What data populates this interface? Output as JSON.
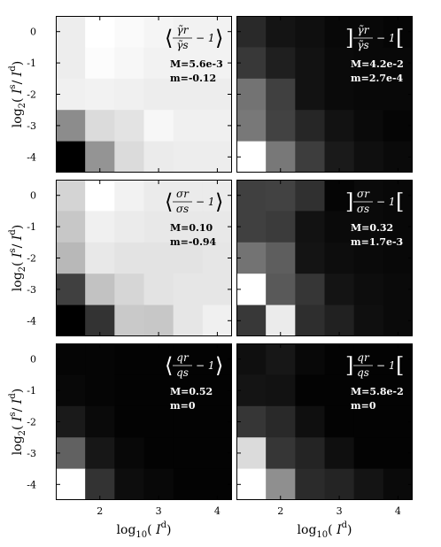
{
  "axes": {
    "xlabel_base": "log",
    "xlabel_sub": "10",
    "xlabel_arg": "I",
    "xlabel_sup": "d",
    "ylabel_base": "log",
    "ylabel_sub": "2",
    "ylabel_num": "I",
    "ylabel_num_sup": "s",
    "ylabel_den": "I",
    "ylabel_den_sup": "d",
    "xticks": [
      "2",
      "3",
      "4"
    ],
    "yticks": [
      "0",
      "-1",
      "-2",
      "-3",
      "-4"
    ]
  },
  "chart_data": {
    "type": "heatmap",
    "x": [
      1.5,
      2.0,
      2.5,
      3.0,
      3.5,
      4.0
    ],
    "y": [
      0,
      -1,
      -2,
      -3,
      -4
    ],
    "xlim": [
      1.25,
      4.25
    ],
    "ylim": [
      -4.5,
      0.5
    ],
    "colorscale": "gray (white = high, black = low)",
    "panels": [
      {
        "formula": "⟨γ̃r/γ̃s − 1⟩",
        "bracket_style": "angle",
        "num": "γ̃r",
        "den": "γ̃s",
        "M": "M=5.6e-3",
        "m": "m=-0.12",
        "text_color": "#000000",
        "values": [
          [
            0.93,
            1.0,
            0.98,
            0.96,
            0.95,
            0.95
          ],
          [
            0.93,
            0.99,
            0.97,
            0.95,
            0.95,
            0.95
          ],
          [
            0.94,
            0.95,
            0.94,
            0.93,
            0.93,
            0.93
          ],
          [
            0.55,
            0.86,
            0.89,
            0.97,
            0.94,
            0.94
          ],
          [
            0.0,
            0.58,
            0.86,
            0.92,
            0.93,
            0.93
          ]
        ]
      },
      {
        "formula": "]γ̃r/γ̃s − 1[",
        "bracket_style": "square",
        "num": "γ̃r",
        "den": "γ̃s",
        "M": "M=4.2e-2",
        "m": "m=2.7e-4",
        "text_color": "#ffffff",
        "values": [
          [
            0.16,
            0.08,
            0.06,
            0.03,
            0.03,
            0.02
          ],
          [
            0.22,
            0.12,
            0.07,
            0.04,
            0.03,
            0.03
          ],
          [
            0.45,
            0.25,
            0.07,
            0.04,
            0.03,
            0.03
          ],
          [
            0.47,
            0.26,
            0.15,
            0.07,
            0.04,
            0.02
          ],
          [
            1.0,
            0.47,
            0.24,
            0.1,
            0.06,
            0.04
          ]
        ]
      },
      {
        "formula": "⟨σr/σs − 1⟩",
        "bracket_style": "angle",
        "num": "σr",
        "den": "σs",
        "M": "M=0.10",
        "m": "m=-0.94",
        "text_color": "#000000",
        "values": [
          [
            0.83,
            1.0,
            0.95,
            0.92,
            0.92,
            0.92
          ],
          [
            0.78,
            0.94,
            0.92,
            0.91,
            0.91,
            0.91
          ],
          [
            0.72,
            0.91,
            0.89,
            0.89,
            0.89,
            0.9
          ],
          [
            0.25,
            0.76,
            0.84,
            0.89,
            0.9,
            0.9
          ],
          [
            0.0,
            0.2,
            0.79,
            0.78,
            0.9,
            0.94
          ]
        ]
      },
      {
        "formula": "]σr/σs − 1[",
        "bracket_style": "square",
        "num": "σr",
        "den": "σs",
        "M": "M=0.32",
        "m": "m=1.7e-3",
        "text_color": "#ffffff",
        "values": [
          [
            0.25,
            0.26,
            0.19,
            0.02,
            0.04,
            0.03
          ],
          [
            0.25,
            0.23,
            0.07,
            0.04,
            0.04,
            0.03
          ],
          [
            0.45,
            0.37,
            0.08,
            0.05,
            0.04,
            0.03
          ],
          [
            1.0,
            0.35,
            0.21,
            0.08,
            0.05,
            0.04
          ],
          [
            0.22,
            0.92,
            0.18,
            0.13,
            0.06,
            0.04
          ]
        ]
      },
      {
        "formula": "⟨qr/qs − 1⟩",
        "bracket_style": "angle",
        "num": "qr",
        "den": "qs",
        "M": "M=0.52",
        "m": "m=0",
        "text_color": "#ffffff",
        "values": [
          [
            0.02,
            0.02,
            0.01,
            0.01,
            0.01,
            0.01
          ],
          [
            0.03,
            0.02,
            0.01,
            0.01,
            0.01,
            0.01
          ],
          [
            0.1,
            0.04,
            0.01,
            0.01,
            0.01,
            0.01
          ],
          [
            0.38,
            0.09,
            0.03,
            0.01,
            0.01,
            0.01
          ],
          [
            1.0,
            0.2,
            0.05,
            0.03,
            0.01,
            0.01
          ]
        ]
      },
      {
        "formula": "]qr/qs − 1[",
        "bracket_style": "square",
        "num": "qr",
        "den": "qs",
        "M": "M=5.8e-2",
        "m": "m=0",
        "text_color": "#ffffff",
        "values": [
          [
            0.06,
            0.09,
            0.03,
            0.01,
            0.01,
            0.01
          ],
          [
            0.08,
            0.07,
            0.01,
            0.01,
            0.01,
            0.01
          ],
          [
            0.21,
            0.16,
            0.06,
            0.01,
            0.01,
            0.01
          ],
          [
            0.86,
            0.21,
            0.14,
            0.06,
            0.01,
            0.01
          ],
          [
            1.0,
            0.56,
            0.17,
            0.14,
            0.08,
            0.04
          ]
        ]
      }
    ]
  }
}
